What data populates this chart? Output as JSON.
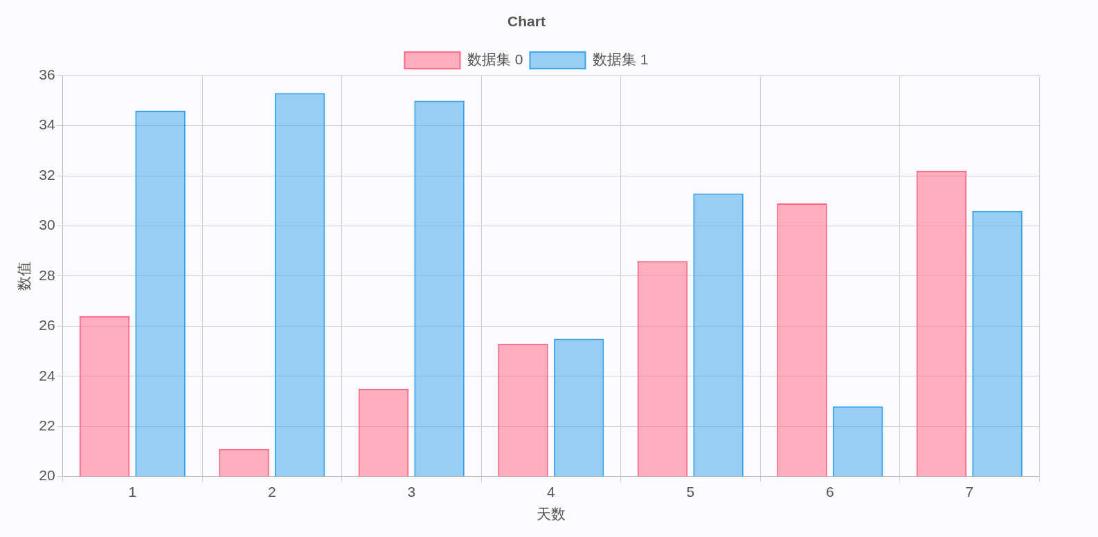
{
  "chart_data": {
    "type": "bar",
    "title": "Chart",
    "xlabel": "天数",
    "ylabel": "数值",
    "categories": [
      "1",
      "2",
      "3",
      "4",
      "5",
      "6",
      "7"
    ],
    "series": [
      {
        "name": "数据集 0",
        "color": "#ff6384",
        "values": [
          26.4,
          21.1,
          23.5,
          25.3,
          28.6,
          30.9,
          32.2
        ]
      },
      {
        "name": "数据集 1",
        "color": "#36a2eb",
        "values": [
          34.6,
          35.3,
          35.0,
          25.5,
          31.3,
          22.8,
          30.6
        ]
      }
    ],
    "ylim": [
      20,
      36
    ],
    "yticks": [
      20,
      22,
      24,
      26,
      28,
      30,
      32,
      34,
      36
    ],
    "grid": true,
    "legend": "top"
  }
}
